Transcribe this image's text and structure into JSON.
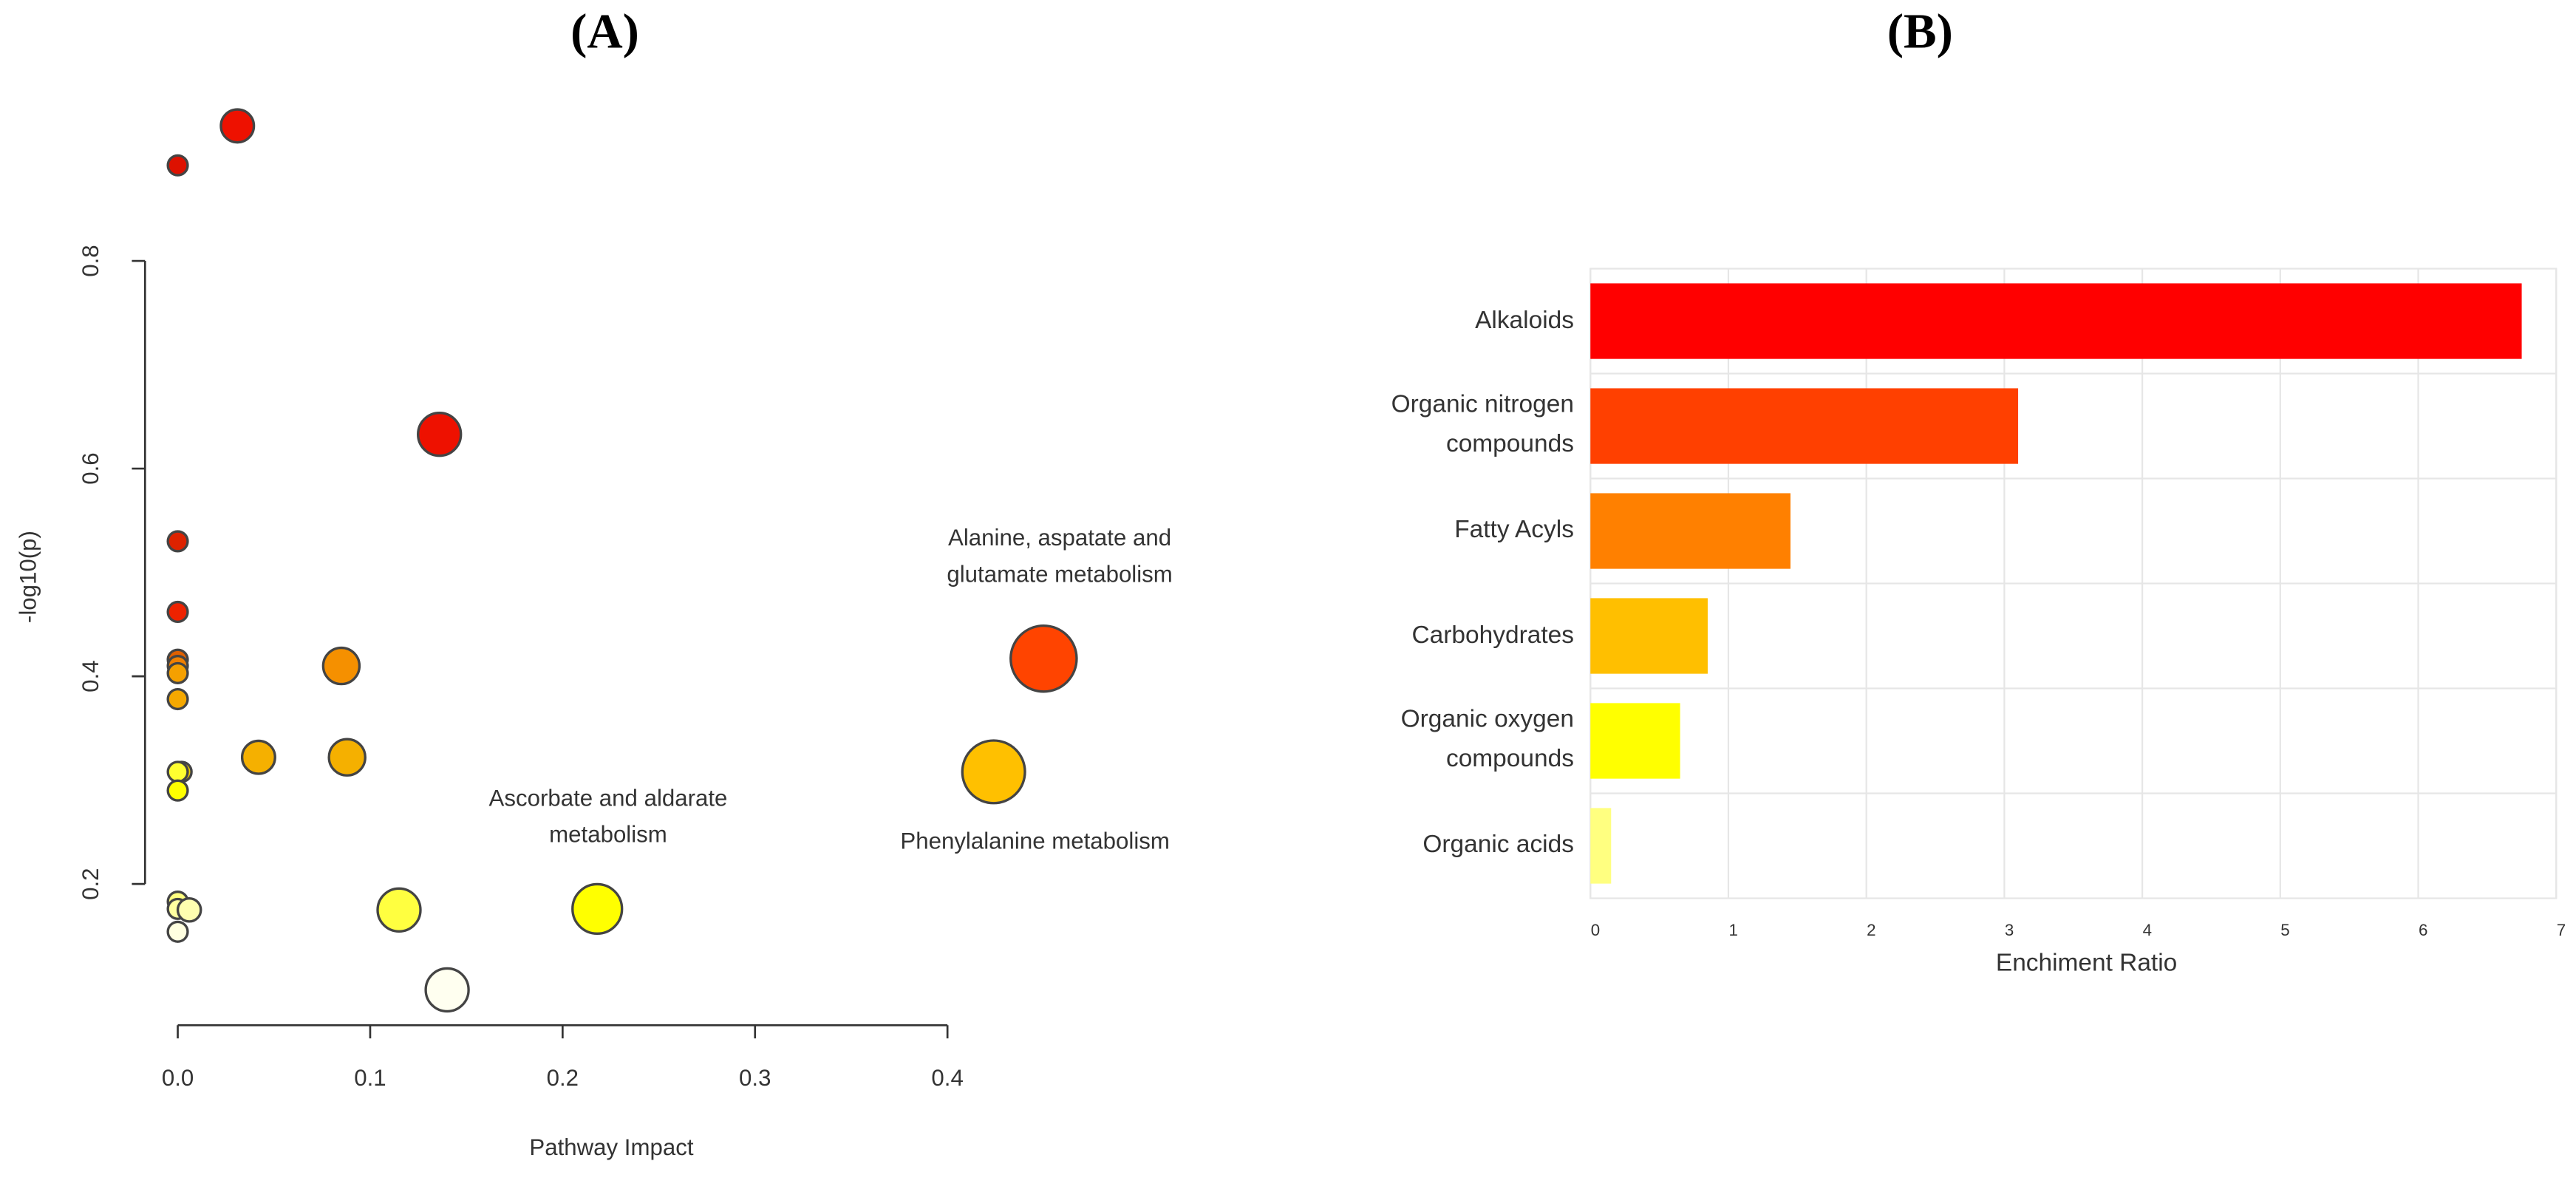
{
  "chart_data": [
    {
      "type": "scatter",
      "title": "(A)",
      "x_label": "Pathway Impact",
      "y_label": "-log10(p)",
      "x": [
        0.031,
        0,
        0.136,
        0,
        0,
        0,
        0,
        0,
        0,
        0.085,
        0.042,
        0.088,
        0.002,
        0,
        0,
        0.45,
        0.424,
        0,
        0,
        0.006,
        0,
        0.115,
        0.218,
        0.14
      ],
      "y": [
        0.93,
        0.892,
        0.633,
        0.53,
        0.462,
        0.416,
        0.41,
        0.403,
        0.378,
        0.41,
        0.322,
        0.322,
        0.308,
        0.308,
        0.29,
        0.417,
        0.308,
        0.183,
        0.176,
        0.175,
        0.154,
        0.175,
        0.176,
        0.098
      ],
      "sizes": [
        10,
        6,
        13,
        6,
        6,
        6,
        6,
        6,
        6,
        11,
        10,
        11,
        6,
        6,
        6,
        20,
        19,
        6,
        6,
        7,
        6,
        13,
        15,
        13
      ],
      "colors": [
        "#ee1100",
        "#dd1100",
        "#ee1100",
        "#dd2200",
        "#ee2200",
        "#e06000",
        "#f08000",
        "#f5a000",
        "#f5a800",
        "#f59000",
        "#f5b000",
        "#f5b000",
        "#f0d000",
        "#ffff30",
        "#ffff00",
        "#ff4400",
        "#ffc000",
        "#ffff80",
        "#ffffa0",
        "#ffffb0",
        "#ffffe0",
        "#ffff40",
        "#ffff00",
        "#fffff0"
      ],
      "annotations": [
        "Alanine, aspatate and glutamate metabolism",
        "Ascorbate and aldarate metabolism",
        "Phenylalanine metabolism"
      ],
      "xlim": [
        -0.017,
        0.47
      ],
      "ylim": [
        0.064,
        0.956
      ],
      "xticks": [
        {
          "value": 0,
          "label": "0.0"
        },
        0.1,
        0.2,
        0.3,
        0.4
      ],
      "yticks": [
        0.2,
        0.4,
        0.6,
        0.8
      ]
    },
    {
      "type": "barh",
      "title": "(B)",
      "x_label": "Enchiment Ratio",
      "categories": [
        "Alkaloids",
        "Organic nitrogen compounds",
        "Fatty Acyls",
        "Carbohydrates",
        "Organic oxygen compounds",
        "Organic acids"
      ],
      "values": [
        6.75,
        3.1,
        1.45,
        0.85,
        0.65,
        0.15
      ],
      "colors": [
        "#ff0000",
        "#ff4000",
        "#ff8000",
        "#ffbf00",
        "#ffff00",
        "#ffff80"
      ],
      "xlim": [
        0,
        7
      ],
      "xticks": [
        0,
        1,
        2,
        3,
        4,
        5,
        6,
        7
      ],
      "grid": true
    }
  ]
}
